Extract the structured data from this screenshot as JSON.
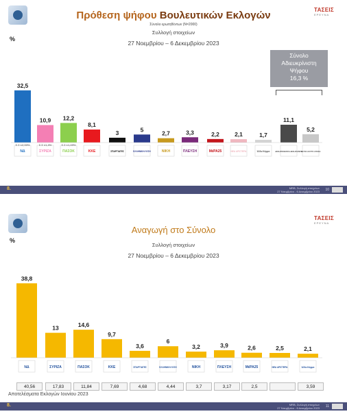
{
  "header": {
    "firm_name": "ΤΑΣΕΙΣ",
    "firm_sub": "ΕΡΕΥΝΑ"
  },
  "colors": {
    "accent_title1": "#b5651d",
    "accent_title2": "#c07a1a",
    "slide2_bars": "#f5b800",
    "footer": "#4a4f7a"
  },
  "slide1": {
    "title_part1": "Πρόθεση ψήφου",
    "title_part2": "Βουλευτικών Εκλογών",
    "note": "Σύνολο ερωτηθέντων (Ν=2000)",
    "subtitle": "Συλλογή στοιχείων",
    "dates": "27 Νοεμβρίου – 6 Δεκεμβρίου 2023",
    "percent_sign": "%",
    "undecided_box": {
      "line1": "Σύνολο",
      "line2": "Αδιευκρίνιστη",
      "line3": "Ψήφου",
      "value": "16,3 %"
    },
    "footer": {
      "page_label": "8.",
      "source_line1": "MRB, Συλλογή στοιχείων",
      "source_line2": "27 Νοεμβρίου - 6 Δεκεμβρίου 2023",
      "page_number": "10"
    }
  },
  "slide2": {
    "title": "Αναγωγή στο Σύνολο",
    "subtitle": "Συλλογή στοιχείων",
    "dates": "27 Νοεμβρίου – 6 Δεκεμβρίου 2023",
    "percent_sign": "%",
    "results_label": "Αποτελέσματα Εκλογών Ιουνίου 2023",
    "results": [
      "40,56",
      "17,83",
      "11,84",
      "7,69",
      "4,68",
      "4,44",
      "3,7",
      "3,17",
      "2,5",
      "",
      "3,59"
    ],
    "footer": {
      "page_label": "8.",
      "source_line1": "MRB, Συλλογή στοιχείων",
      "source_line2": "27 Νοεμβρίου - 6 Δεκεμβρίου 2023",
      "page_number": "11"
    }
  },
  "chart_data": [
    {
      "type": "bar",
      "title": "Πρόθεση ψήφου Βουλευτικών Εκλογών",
      "subtitle": "Συλλογή στοιχείων 27 Νοεμβρίου – 6 Δεκεμβρίου 2023",
      "ylabel": "%",
      "ylim": [
        0,
        35
      ],
      "values": [
        32.5,
        10.9,
        12.2,
        8.1,
        3,
        5,
        2.7,
        3.3,
        2.2,
        2.1,
        1.7,
        11.1,
        5.2
      ],
      "value_labels": [
        "32,5",
        "10,9",
        "12,2",
        "8,1",
        "3",
        "5",
        "2,7",
        "3,3",
        "2,2",
        "2,1",
        "1,7",
        "11,1",
        "5,2"
      ],
      "colors": [
        "#1f6fc0",
        "#f47fb4",
        "#8ccf4d",
        "#e8191e",
        "#111111",
        "#2a3a8c",
        "#c89a1e",
        "#7a2a7a",
        "#c4161c",
        "#f0b8c0",
        "#d4d4d4",
        "#4a4a4a",
        "#c8c8c8"
      ],
      "categories": [
        "ΝΔ",
        "ΣΥΡΙΖΑ",
        "ΠΑΣΟΚ",
        "ΚΚΕ",
        "ΣΠΑΡΤΙΑΤΕΣ",
        "ΕΛΛΗΝΙΚΗ ΛΥΣΗ",
        "ΝΙΚΗ",
        "ΠΛΕΥΣΗ",
        "ΜέΡΑ25",
        "ΝΕΑ ΑΡΙΣΤΕΡΑ",
        "Άλλο Κόμμα",
        "ΔΕΝ ΑΠΟΦΑΣΙΣΑ ΔΕΝ ΑΠΑΝΤΩ",
        "ΛΕΥΚΟ ΑΚΥΡΟ ΑΠΟΧΗ"
      ],
      "category_labels": [
        "ΝΔ",
        "ΣΥΡΙΖΑ",
        "ΠΑΣΟΚ",
        "ΚΚΕ",
        "ΣΠΑΡΤΙΑΤΕΣ",
        "ΕΛΛΗΝΙΚΗ ΛΥΣΗ",
        "ΝΙΚΗ",
        "ΠΛΕΥΣΗ",
        "ΜέΡΑ25",
        "ΝΕΑ ΑΡΙΣΤΕΡΑ",
        "Άλλο Κόμμα",
        "ΔΕΝ ΑΠΟΦΑΣΙΣΑ ΔΕΝ ΑΠΑΝΤΩ",
        "ΛΕΥΚΟ ΑΚΥΡΟ ΑΠΟΧΗ"
      ],
      "error_labels": [
        "Σ.Σ ±2,00%",
        "Σ.Σ ±1,4%",
        "Σ.Σ ±1,49%"
      ],
      "grid": false
    },
    {
      "type": "bar",
      "title": "Αναγωγή στο Σύνολο",
      "subtitle": "Συλλογή στοιχείων 27 Νοεμβρίου – 6 Δεκεμβρίου 2023",
      "ylabel": "%",
      "ylim": [
        0,
        40
      ],
      "values": [
        38.8,
        13,
        14.6,
        9.7,
        3.6,
        6,
        3.2,
        3.9,
        2.6,
        2.5,
        2.1
      ],
      "value_labels": [
        "38,8",
        "13",
        "14,6",
        "9,7",
        "3,6",
        "6",
        "3,2",
        "3,9",
        "2,6",
        "2,5",
        "2,1"
      ],
      "categories": [
        "ΝΔ",
        "ΣΥΡΙΖΑ",
        "ΠΑΣΟΚ",
        "ΚΚΕ",
        "ΣΠΑΡΤΙΑΤΕΣ",
        "ΕΛΛΗΝΙΚΗ ΛΥΣΗ",
        "ΝΙΚΗ",
        "ΠΛΕΥΣΗ",
        "ΜέΡΑ25",
        "ΝΕΑ ΑΡΙΣΤΕΡΑ",
        "Άλλο Κόμμα"
      ],
      "category_labels": [
        "ΝΔ",
        "ΣΥΡΙΖΑ",
        "ΠΑΣΟΚ",
        "ΚΚΕ",
        "ΣΠΑΡΤΙΑΤΕΣ",
        "ΕΛΛΗΝΙΚΗ ΛΥΣΗ",
        "ΝΙΚΗ",
        "ΠΛΕΥΣΗ",
        "ΜέΡΑ25",
        "ΝΕΑ ΑΡΙΣΤΕΡΑ",
        "Άλλο Κόμμα"
      ],
      "color": "#f5b800",
      "grid": false
    }
  ]
}
